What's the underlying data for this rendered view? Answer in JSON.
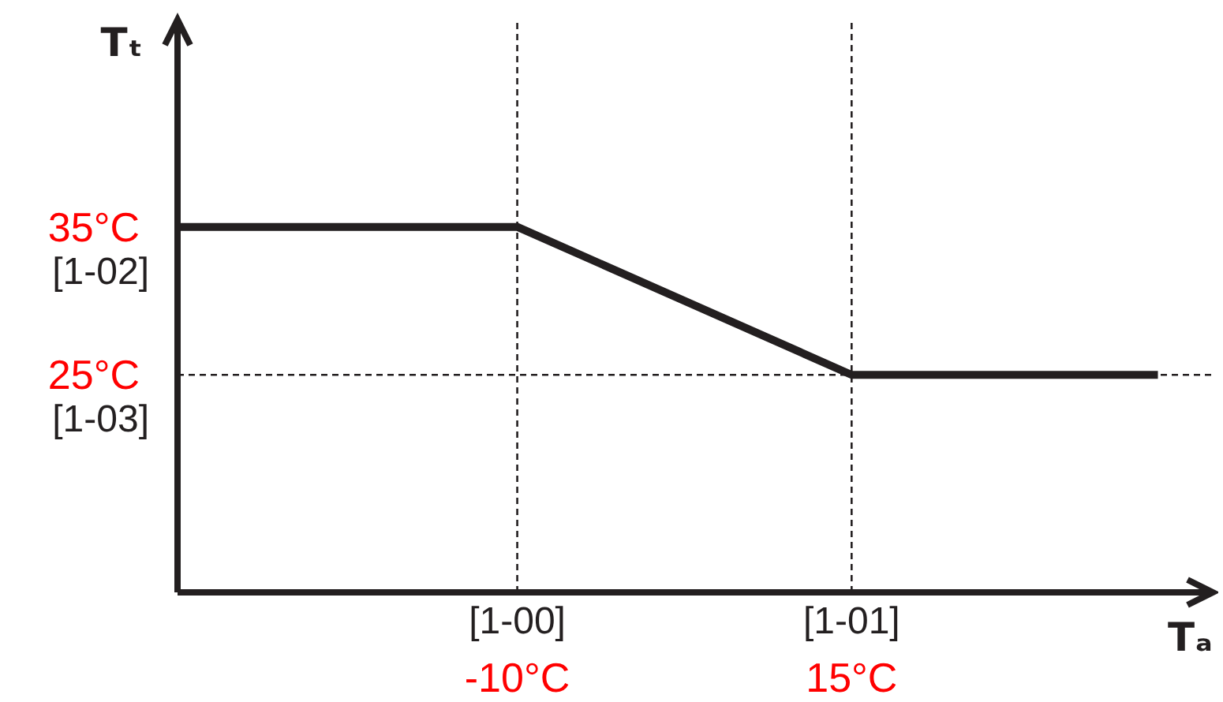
{
  "chart_data": {
    "type": "line",
    "xlabel": "Tₐ",
    "ylabel": "Tₜ",
    "xlim": [
      -35.4,
      42.0
    ],
    "ylim": [
      10.3,
      49.0
    ],
    "xticks": [
      {
        "value": -10,
        "label": "-10°C"
      },
      {
        "value": 15,
        "label": "15°C"
      }
    ],
    "yticks": [
      {
        "value": 35,
        "label": "35°C"
      },
      {
        "value": 25,
        "label": "25°C"
      }
    ],
    "series": [
      {
        "color": "#231f20",
        "x": [
          -35.4,
          -10,
          15,
          37.9
        ],
        "values": [
          35,
          35,
          25,
          25
        ]
      }
    ],
    "ref_lines": [
      {
        "axis": "x",
        "value": -10,
        "line_style": "dashed"
      },
      {
        "axis": "x",
        "value": 15,
        "line_style": "dashed"
      },
      {
        "axis": "y",
        "value": 25,
        "line_style": "dashed"
      }
    ],
    "annotations": [
      "[1-02]",
      "[1-03]",
      "[1-00]",
      "[1-01]"
    ],
    "grid": false,
    "line_style": "solid"
  }
}
